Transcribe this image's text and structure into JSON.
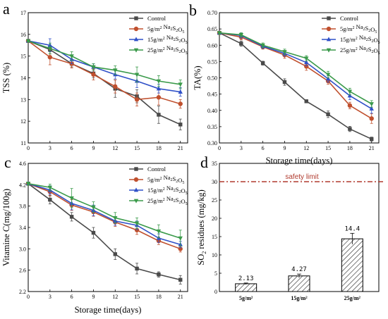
{
  "chart_data": [
    {
      "type": "line",
      "panel_label": "a",
      "xlabel": "",
      "ylabel": "TSS (%)",
      "xlim": [
        0,
        22
      ],
      "ylim": [
        11,
        17
      ],
      "x": [
        0,
        3,
        6,
        9,
        12,
        15,
        18,
        21
      ],
      "xticks": [
        0,
        3,
        6,
        9,
        12,
        15,
        18,
        21
      ],
      "yticks": [
        11,
        12,
        13,
        14,
        15,
        16,
        17
      ],
      "legend_position": "top-right",
      "series": [
        {
          "name": "Control",
          "color": "#4a4a4a",
          "marker": "square",
          "values": [
            15.7,
            15.3,
            14.65,
            14.2,
            13.5,
            13.15,
            12.3,
            11.85
          ],
          "errors": [
            0.05,
            0.2,
            0.15,
            0.2,
            0.4,
            0.3,
            0.4,
            0.25
          ]
        },
        {
          "name": "5g/m2 Na2S2O5",
          "color": "#c0502e",
          "marker": "circle",
          "values": [
            15.7,
            14.95,
            14.65,
            14.15,
            13.6,
            13.0,
            13.1,
            12.8
          ],
          "errors": [
            0.05,
            0.35,
            0.2,
            0.25,
            0.3,
            0.3,
            0.35,
            0.2
          ]
        },
        {
          "name": "15g/m2 Na2S2O5",
          "color": "#2f50c8",
          "marker": "triangle-up",
          "values": [
            15.7,
            15.5,
            14.85,
            14.5,
            14.15,
            13.85,
            13.5,
            13.35
          ],
          "errors": [
            0.05,
            0.3,
            0.2,
            0.15,
            0.2,
            0.3,
            0.2,
            0.2
          ]
        },
        {
          "name": "25g/m2 Na2S2O5",
          "color": "#3a9a4a",
          "marker": "triangle-down",
          "values": [
            15.7,
            15.35,
            15.0,
            14.5,
            14.35,
            14.15,
            13.85,
            13.7
          ],
          "errors": [
            0.05,
            0.25,
            0.2,
            0.15,
            0.2,
            0.35,
            0.25,
            0.2
          ]
        }
      ]
    },
    {
      "type": "line",
      "panel_label": "b",
      "xlabel": "Storage time(days)",
      "ylabel": "TA(%)",
      "xlim": [
        0,
        22
      ],
      "ylim": [
        0.3,
        0.7
      ],
      "x": [
        0,
        3,
        6,
        9,
        12,
        15,
        18,
        21
      ],
      "xticks": [
        0,
        3,
        6,
        9,
        12,
        15,
        18,
        21
      ],
      "yticks": [
        0.3,
        0.35,
        0.4,
        0.45,
        0.5,
        0.55,
        0.6,
        0.65,
        0.7
      ],
      "legend_position": "top-right",
      "series": [
        {
          "name": "Control",
          "color": "#4a4a4a",
          "marker": "square",
          "values": [
            0.638,
            0.605,
            0.545,
            0.487,
            0.428,
            0.388,
            0.343,
            0.312
          ],
          "errors": [
            0.003,
            0.008,
            0.006,
            0.01,
            0.004,
            0.01,
            0.008,
            0.006
          ]
        },
        {
          "name": "5g/m2 Na2S2O5",
          "color": "#c0502e",
          "marker": "circle",
          "values": [
            0.638,
            0.625,
            0.595,
            0.57,
            0.535,
            0.49,
            0.415,
            0.375
          ],
          "errors": [
            0.003,
            0.008,
            0.007,
            0.01,
            0.012,
            0.01,
            0.01,
            0.015
          ]
        },
        {
          "name": "15g/m2 Na2S2O5",
          "color": "#2f50c8",
          "marker": "triangle-up",
          "values": [
            0.638,
            0.63,
            0.597,
            0.575,
            0.547,
            0.497,
            0.445,
            0.405
          ],
          "errors": [
            0.003,
            0.008,
            0.007,
            0.008,
            0.01,
            0.01,
            0.012,
            0.014
          ]
        },
        {
          "name": "25g/m2 Na2S2O5",
          "color": "#3a9a4a",
          "marker": "triangle-down",
          "values": [
            0.638,
            0.632,
            0.6,
            0.58,
            0.56,
            0.51,
            0.458,
            0.42
          ],
          "errors": [
            0.003,
            0.006,
            0.007,
            0.008,
            0.008,
            0.01,
            0.01,
            0.01
          ]
        }
      ]
    },
    {
      "type": "line",
      "panel_label": "c",
      "xlabel": "Storage time(days)",
      "ylabel": "Vitamine C(mg/100g)",
      "xlim": [
        0,
        22
      ],
      "ylim": [
        2.2,
        4.6
      ],
      "x": [
        0,
        3,
        6,
        9,
        12,
        15,
        18,
        21
      ],
      "xticks": [
        0,
        3,
        6,
        9,
        12,
        15,
        18,
        21
      ],
      "yticks": [
        2.2,
        2.6,
        3.0,
        3.4,
        3.8,
        4.2,
        4.6
      ],
      "legend_position": "top-right",
      "series": [
        {
          "name": "Control",
          "color": "#4a4a4a",
          "marker": "square",
          "values": [
            4.22,
            3.92,
            3.6,
            3.3,
            2.9,
            2.63,
            2.52,
            2.42
          ],
          "errors": [
            0.03,
            0.08,
            0.08,
            0.1,
            0.1,
            0.1,
            0.05,
            0.08
          ]
        },
        {
          "name": "5g/m2 Na2S2O5",
          "color": "#c0502e",
          "marker": "circle",
          "values": [
            4.22,
            4.07,
            3.82,
            3.69,
            3.5,
            3.35,
            3.15,
            3.0
          ],
          "errors": [
            0.03,
            0.08,
            0.1,
            0.08,
            0.08,
            0.08,
            0.07,
            0.06
          ]
        },
        {
          "name": "15g/m2 Na2S2O5",
          "color": "#2f50c8",
          "marker": "triangle-up",
          "values": [
            4.22,
            4.1,
            3.85,
            3.72,
            3.52,
            3.44,
            3.2,
            3.08
          ],
          "errors": [
            0.03,
            0.08,
            0.12,
            0.1,
            0.08,
            0.08,
            0.08,
            0.06
          ]
        },
        {
          "name": "25g/m2 Na2S2O5",
          "color": "#3a9a4a",
          "marker": "triangle-down",
          "values": [
            4.22,
            4.15,
            3.95,
            3.78,
            3.58,
            3.48,
            3.33,
            3.2
          ],
          "errors": [
            0.03,
            0.06,
            0.18,
            0.1,
            0.1,
            0.1,
            0.12,
            0.15
          ]
        }
      ]
    },
    {
      "type": "bar",
      "panel_label": "d",
      "xlabel": "",
      "ylabel": "SO2 residues (mg/kg)",
      "ylim": [
        0,
        35
      ],
      "yticks": [
        0,
        5,
        10,
        15,
        20,
        25,
        30,
        35
      ],
      "categories": [
        "5g/m²",
        "15g/m²",
        "25g/m²"
      ],
      "values": [
        2.13,
        4.27,
        14.4
      ],
      "value_labels": [
        "2.13",
        "4.27",
        "14.4"
      ],
      "errors": [
        0.2,
        0.5,
        1.5
      ],
      "fill": "hatched",
      "reference_line": {
        "value": 30,
        "label": "safety limit",
        "color": "#b03a2e",
        "style": "dash-dot"
      }
    }
  ]
}
